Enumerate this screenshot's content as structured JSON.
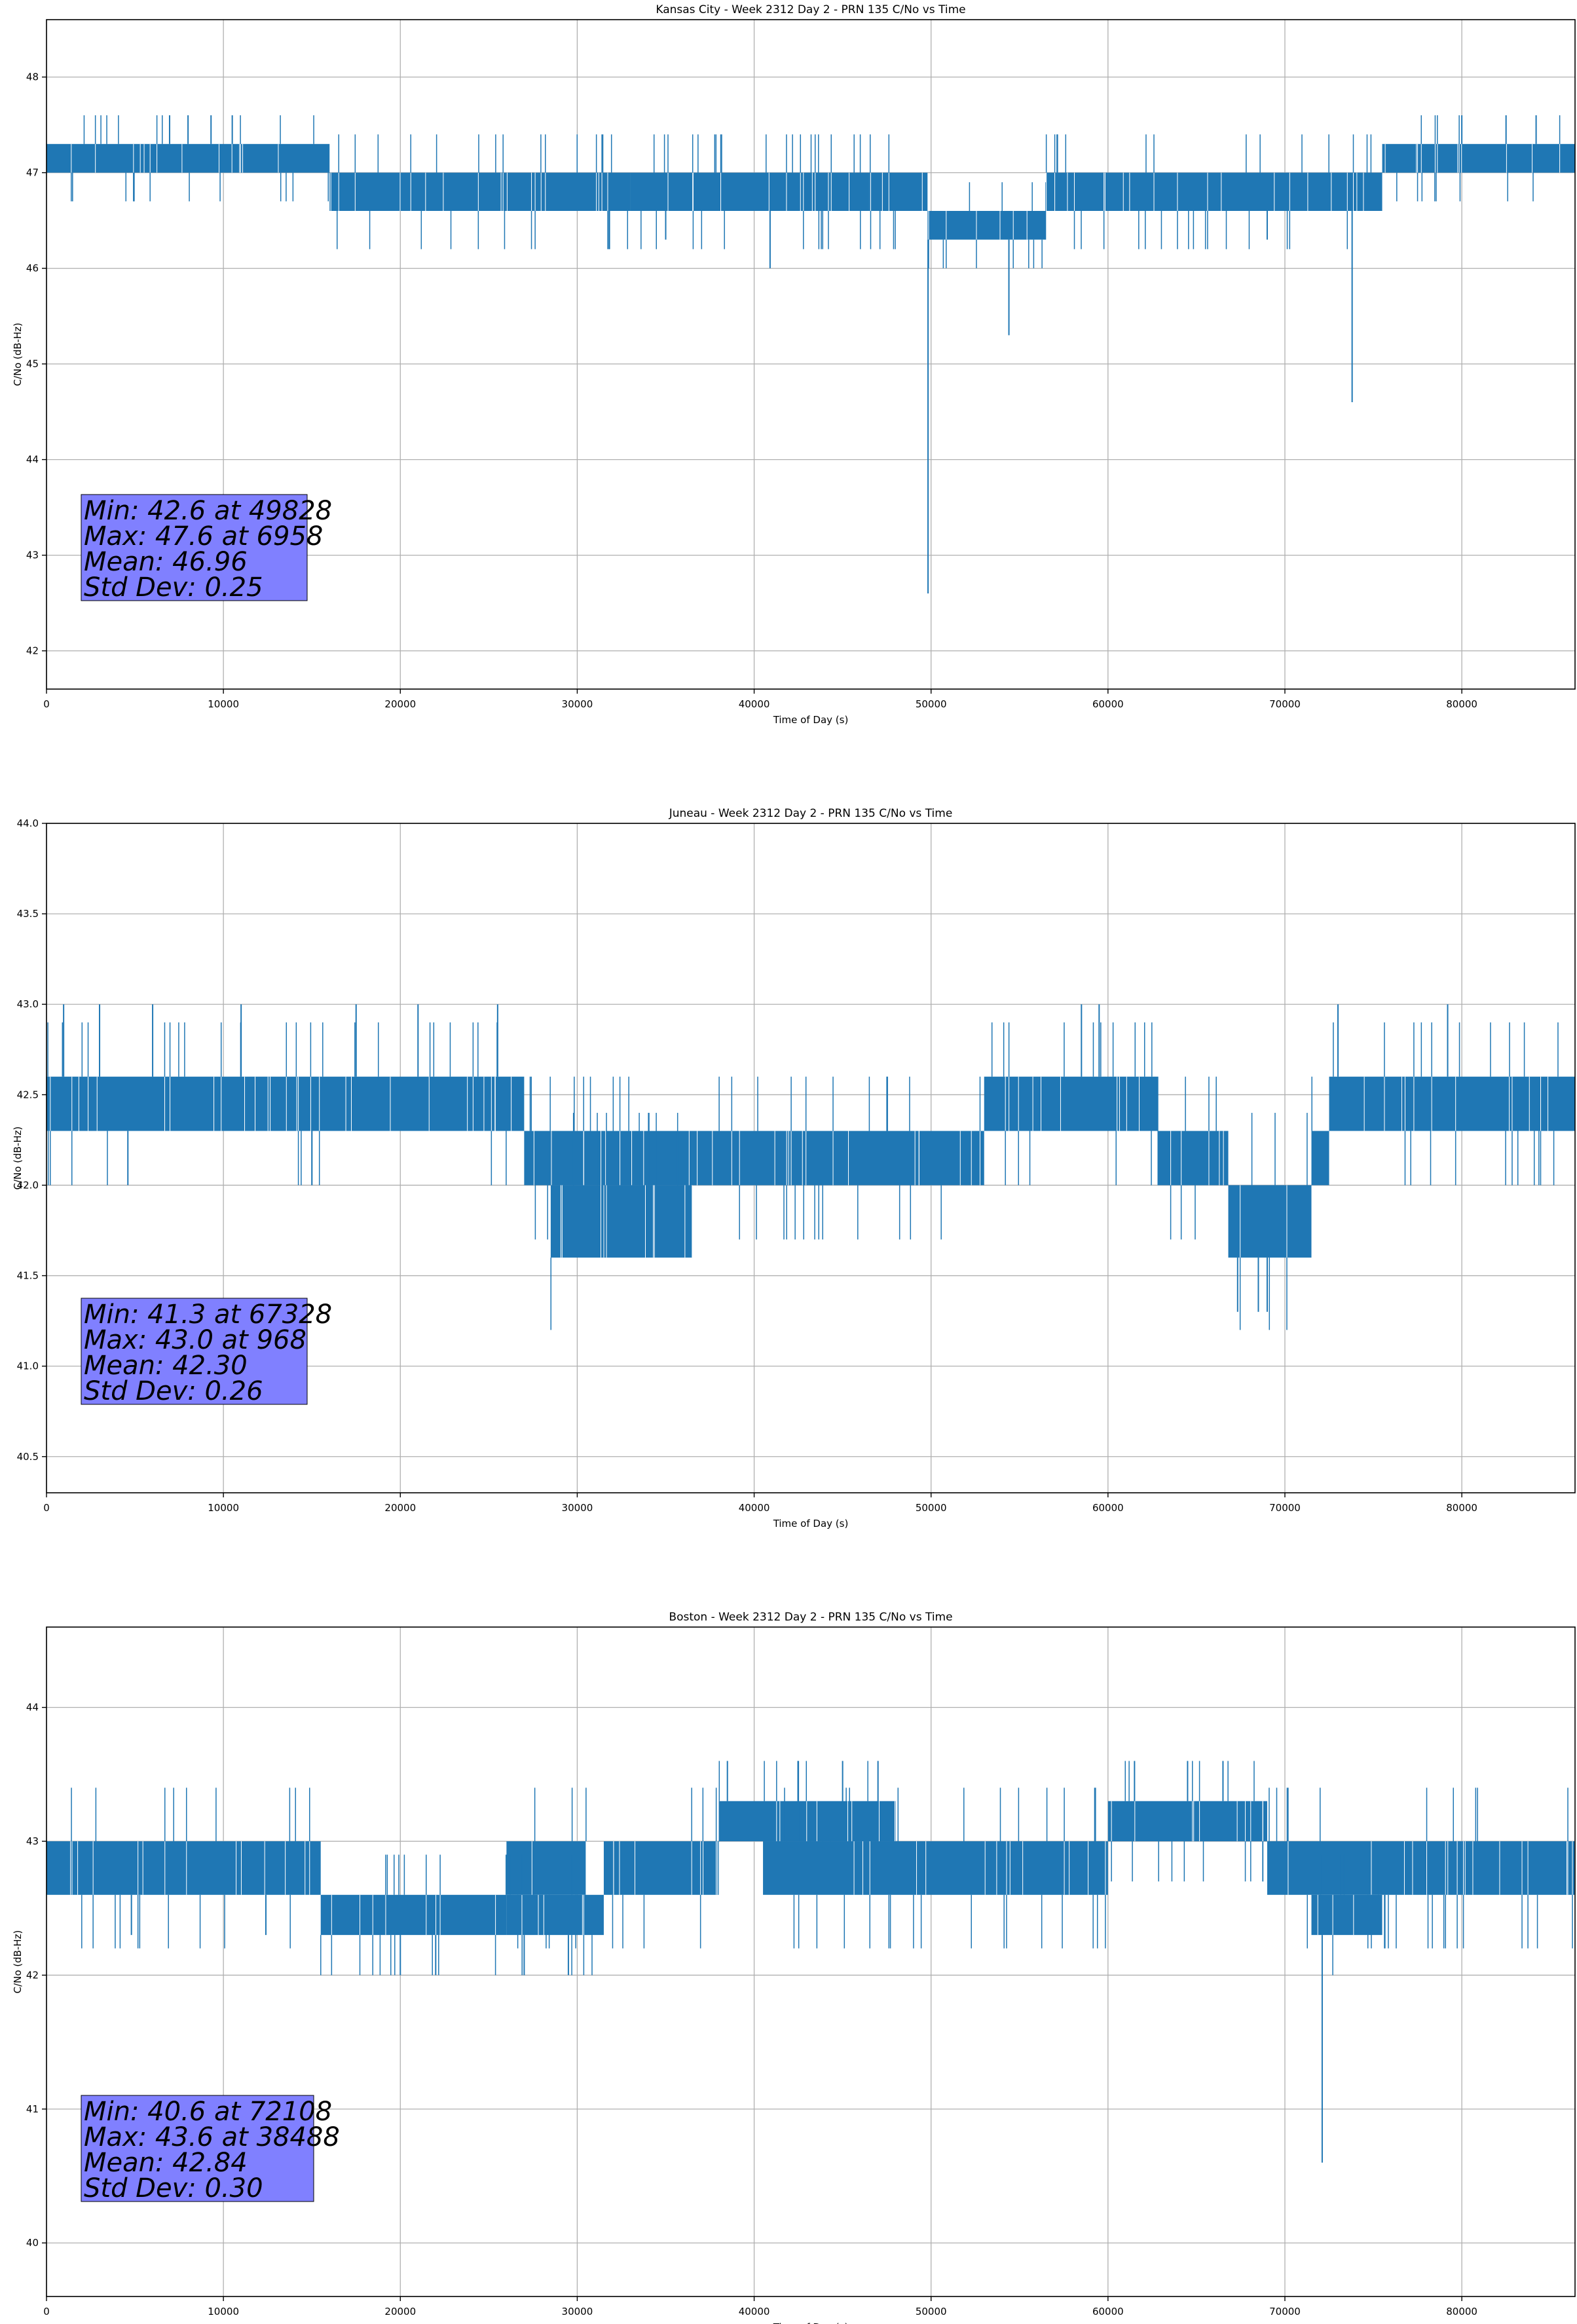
{
  "figure": {
    "colors": {
      "line": "#1f77b4",
      "grid": "#b0b0b0",
      "stats_box": "#8080ff",
      "axes": "#000000"
    }
  },
  "chart_data": [
    {
      "type": "line",
      "title": "Kansas City - Week 2312 Day 2 - PRN 135 C/No vs Time",
      "xlabel": "Time of Day (s)",
      "ylabel": "C/No (dB-Hz)",
      "xlim": [
        0,
        86400
      ],
      "ylim": [
        41.6,
        48.6
      ],
      "xticks": [
        0,
        10000,
        20000,
        30000,
        40000,
        50000,
        60000,
        70000,
        80000
      ],
      "xtick_labels": [
        "0",
        "10000",
        "20000",
        "30000",
        "40000",
        "50000",
        "60000",
        "70000",
        "80000"
      ],
      "yticks": [
        42,
        43,
        44,
        45,
        46,
        47,
        48
      ],
      "ytick_labels": [
        "42",
        "43",
        "44",
        "45",
        "46",
        "47",
        "48"
      ],
      "grid": true,
      "stats": [
        "Min: 42.6 at 49828",
        "Max: 47.6 at 6958",
        "Mean: 46.96",
        "Std Dev: 0.25"
      ],
      "bands": [
        {
          "x": [
            0,
            16000
          ],
          "y": [
            47.0,
            47.3
          ]
        },
        {
          "x": [
            16000,
            33000
          ],
          "y": [
            46.6,
            47.0
          ]
        },
        {
          "x": [
            33000,
            46500
          ],
          "y": [
            46.6,
            47.0
          ]
        },
        {
          "x": [
            46500,
            49800
          ],
          "y": [
            46.6,
            47.0
          ]
        },
        {
          "x": [
            49800,
            56500
          ],
          "y": [
            46.3,
            46.6
          ]
        },
        {
          "x": [
            56500,
            75500
          ],
          "y": [
            46.6,
            47.0
          ]
        },
        {
          "x": [
            75500,
            86400
          ],
          "y": [
            47.0,
            47.3
          ]
        }
      ],
      "spikes": [
        {
          "x": 6958,
          "y": 47.6
        },
        {
          "x": 8000,
          "y": 47.6
        },
        {
          "x": 9300,
          "y": 47.6
        },
        {
          "x": 10500,
          "y": 47.6
        },
        {
          "x": 80000,
          "y": 47.6
        },
        {
          "x": 82500,
          "y": 47.6
        },
        {
          "x": 84200,
          "y": 47.6
        },
        {
          "x": 40900,
          "y": 46.0
        },
        {
          "x": 49828,
          "y": 42.6
        },
        {
          "x": 54400,
          "y": 45.3
        },
        {
          "x": 73800,
          "y": 44.6
        },
        {
          "x": 35000,
          "y": 46.3
        },
        {
          "x": 69000,
          "y": 46.3
        }
      ]
    },
    {
      "type": "line",
      "title": "Juneau - Week 2312 Day 2 - PRN 135 C/No vs Time",
      "xlabel": "Time of Day (s)",
      "ylabel": "C/No (dB-Hz)",
      "xlim": [
        0,
        86400
      ],
      "ylim": [
        40.3,
        44.0
      ],
      "xticks": [
        0,
        10000,
        20000,
        30000,
        40000,
        50000,
        60000,
        70000,
        80000
      ],
      "xtick_labels": [
        "0",
        "10000",
        "20000",
        "30000",
        "40000",
        "50000",
        "60000",
        "70000",
        "80000"
      ],
      "yticks": [
        40.5,
        41.0,
        41.5,
        42.0,
        42.5,
        43.0,
        43.5,
        44.0
      ],
      "ytick_labels": [
        "40.5",
        "41.0",
        "41.5",
        "42.0",
        "42.5",
        "43.0",
        "43.5",
        "44.0"
      ],
      "grid": true,
      "stats": [
        "Min: 41.3 at 67328",
        "Max: 43.0 at 968",
        "Mean: 42.30",
        "Std Dev: 0.26"
      ],
      "bands": [
        {
          "x": [
            0,
            27000
          ],
          "y": [
            42.3,
            42.6
          ]
        },
        {
          "x": [
            27000,
            36500
          ],
          "y": [
            42.0,
            42.3
          ]
        },
        {
          "x": [
            28500,
            36500
          ],
          "y": [
            41.6,
            42.0
          ]
        },
        {
          "x": [
            36500,
            53000
          ],
          "y": [
            42.0,
            42.3
          ]
        },
        {
          "x": [
            53000,
            62800
          ],
          "y": [
            42.3,
            42.6
          ]
        },
        {
          "x": [
            62800,
            66800
          ],
          "y": [
            42.0,
            42.3
          ]
        },
        {
          "x": [
            66800,
            71500
          ],
          "y": [
            41.6,
            42.0
          ]
        },
        {
          "x": [
            71500,
            72500
          ],
          "y": [
            42.0,
            42.3
          ]
        },
        {
          "x": [
            72500,
            86400
          ],
          "y": [
            42.3,
            42.6
          ]
        }
      ],
      "spikes": [
        {
          "x": 968,
          "y": 43.0
        },
        {
          "x": 3000,
          "y": 43.0
        },
        {
          "x": 6000,
          "y": 43.0
        },
        {
          "x": 11000,
          "y": 43.0
        },
        {
          "x": 17500,
          "y": 43.0
        },
        {
          "x": 21000,
          "y": 43.0
        },
        {
          "x": 25500,
          "y": 43.0
        },
        {
          "x": 58500,
          "y": 43.0
        },
        {
          "x": 59500,
          "y": 43.0
        },
        {
          "x": 73000,
          "y": 43.0
        },
        {
          "x": 79200,
          "y": 43.0
        },
        {
          "x": 4600,
          "y": 42.0
        },
        {
          "x": 15000,
          "y": 42.0
        },
        {
          "x": 67328,
          "y": 41.3
        },
        {
          "x": 68500,
          "y": 41.3
        },
        {
          "x": 69000,
          "y": 41.3
        }
      ]
    },
    {
      "type": "line",
      "title": "Boston - Week 2312 Day 2 - PRN 135 C/No vs Time",
      "xlabel": "Time of Day (s)",
      "ylabel": "C/No (dB-Hz)",
      "xlim": [
        0,
        86400
      ],
      "ylim": [
        39.6,
        44.6
      ],
      "xticks": [
        0,
        10000,
        20000,
        30000,
        40000,
        50000,
        60000,
        70000,
        80000
      ],
      "xtick_labels": [
        "0",
        "10000",
        "20000",
        "30000",
        "40000",
        "50000",
        "60000",
        "70000",
        "80000"
      ],
      "yticks": [
        40,
        41,
        42,
        43,
        44
      ],
      "ytick_labels": [
        "40",
        "41",
        "42",
        "43",
        "44"
      ],
      "grid": true,
      "stats": [
        "Min: 40.6 at 72108",
        "Max: 43.6 at 38488",
        "Mean: 42.84",
        "Std Dev: 0.30"
      ],
      "bands": [
        {
          "x": [
            0,
            15500
          ],
          "y": [
            42.6,
            43.0
          ]
        },
        {
          "x": [
            15500,
            26000
          ],
          "y": [
            42.3,
            42.6
          ]
        },
        {
          "x": [
            26000,
            30500
          ],
          "y": [
            42.6,
            43.0
          ]
        },
        {
          "x": [
            26000,
            31500
          ],
          "y": [
            42.3,
            42.6
          ]
        },
        {
          "x": [
            31500,
            38000
          ],
          "y": [
            42.6,
            43.0
          ]
        },
        {
          "x": [
            38000,
            48000
          ],
          "y": [
            43.0,
            43.3
          ]
        },
        {
          "x": [
            40500,
            60000
          ],
          "y": [
            42.6,
            43.0
          ]
        },
        {
          "x": [
            60000,
            69000
          ],
          "y": [
            43.0,
            43.3
          ]
        },
        {
          "x": [
            69000,
            86400
          ],
          "y": [
            42.6,
            43.0
          ]
        },
        {
          "x": [
            71500,
            75500
          ],
          "y": [
            42.3,
            42.6
          ]
        }
      ],
      "spikes": [
        {
          "x": 38488,
          "y": 43.6
        },
        {
          "x": 42500,
          "y": 43.6
        },
        {
          "x": 45000,
          "y": 43.6
        },
        {
          "x": 47000,
          "y": 43.6
        },
        {
          "x": 61500,
          "y": 43.6
        },
        {
          "x": 64500,
          "y": 43.6
        },
        {
          "x": 66500,
          "y": 43.6
        },
        {
          "x": 4800,
          "y": 42.3
        },
        {
          "x": 12400,
          "y": 42.3
        },
        {
          "x": 20000,
          "y": 42.0
        },
        {
          "x": 22000,
          "y": 42.0
        },
        {
          "x": 27000,
          "y": 42.0
        },
        {
          "x": 29500,
          "y": 42.0
        },
        {
          "x": 72108,
          "y": 40.6
        }
      ]
    }
  ]
}
